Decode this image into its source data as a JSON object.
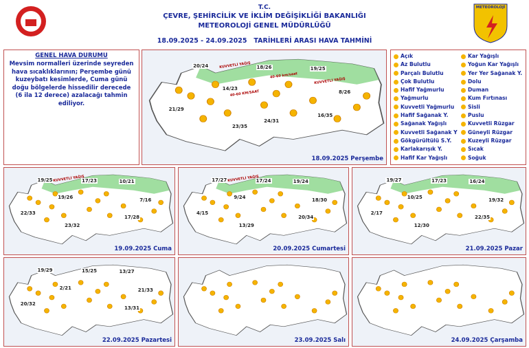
{
  "header": {
    "org": "T.C.",
    "ministry": "ÇEVRE, ŞEHİRCİLİK VE İKLİM DEĞİŞİKLİĞİ BAKANLIĞI",
    "directorate": "METEOROLOJİ GENEL MÜDÜRLÜĞÜ",
    "period": "18.09.2025 - 24.09.2025   TARİHLERİ ARASI HAVA TAHMİNİ",
    "logo": "METEOROLOJİ"
  },
  "summary": {
    "title": "GENEL HAVA DURUMU",
    "text": "Mevsim normalleri üzerinde seyreden hava sıcaklıklarının; Perşembe günü kuzeybatı kesimlerde, Cuma günü doğu bölgelerde hissedilir derecede (6 ila 12 derece) azalacağı tahmin ediliyor."
  },
  "legend": {
    "left": [
      "Açık",
      "Az Bulutlu",
      "Parçalı Bulutlu",
      "Çok Bulutlu",
      "Hafif Yağmurlu",
      "Yağmurlu",
      "Kuvvetli Yağmurlu",
      "Hafif Sağanak Y.",
      "Sağanak Yağışlı",
      "Kuvvetli Sağanak Y",
      "Gökgürültülü S.Y.",
      "Karlakarışık Y.",
      "Hafif Kar Yağışlı"
    ],
    "right": [
      "Kar Yağışlı",
      "Yoğun Kar Yağışlı",
      "Yer Yer Sağanak Y.",
      "Dolu",
      "Duman",
      "Kum Fırtınası",
      "Sisli",
      "Puslu",
      "Kuvvetli Rüzgar",
      "Güneyli Rüzgar",
      "Kuzeyli Rüzgar",
      "Sıcak",
      "Soğuk"
    ]
  },
  "maps": [
    {
      "date": "18.09.2025 Perşembe",
      "temps": [
        "20/24",
        "18/26",
        "19/25",
        "14/23",
        "21/29",
        "8/26",
        "16/35",
        "23/35",
        "24/31"
      ],
      "notes": [
        "KUVVETLİ YAĞIŞ",
        "40-60 km/saat",
        "KUVVETLİ YAĞIŞ",
        "40-60 KM/SAAT"
      ]
    },
    {
      "date": "19.09.2025 Cuma",
      "temps": [
        "19/25",
        "17/23",
        "10/21",
        "19/26",
        "22/33",
        "7/16",
        "17/28",
        "23/32"
      ],
      "notes": [
        "KUVVETLİ YAĞIŞ"
      ]
    },
    {
      "date": "20.09.2025 Cumartesi",
      "temps": [
        "17/27",
        "17/24",
        "19/24",
        "9/24",
        "4/15",
        "18/30",
        "20/34",
        "13/29"
      ],
      "notes": [
        "KUVVETLİ YAĞIŞ"
      ]
    },
    {
      "date": "21.09.2025 Pazar",
      "temps": [
        "19/27",
        "17/23",
        "16/24",
        "10/25",
        "2/17",
        "19/32",
        "22/35",
        "12/30"
      ],
      "notes": []
    },
    {
      "date": "22.09.2025 Pazartesi",
      "temps": [
        "19/29",
        "15/25",
        "13/27",
        "2/21",
        "20/32",
        "21/33",
        "13/31"
      ],
      "notes": []
    },
    {
      "date": "23.09.2025 Salı",
      "temps": [],
      "notes": []
    },
    {
      "date": "24.09.2025 Çarşamba",
      "temps": [],
      "notes": []
    }
  ]
}
